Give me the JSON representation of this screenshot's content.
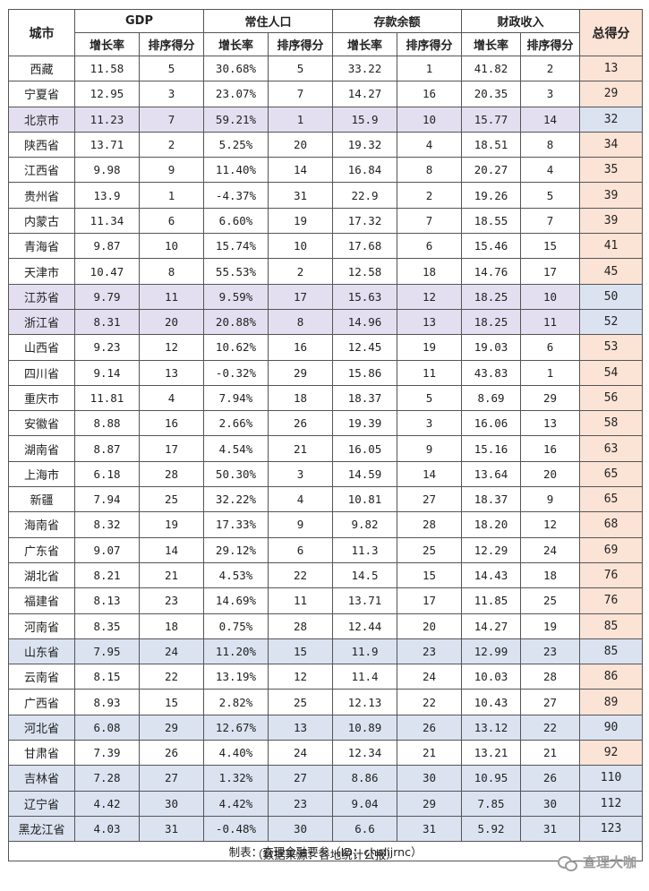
{
  "headers": {
    "city": "城市",
    "groups": [
      "GDP",
      "常住人口",
      "存款余额",
      "财政收入"
    ],
    "sub_rate": "增长率",
    "sub_rank": "排序得分",
    "total": "总得分"
  },
  "rows": [
    {
      "city": "西藏",
      "gdp": "11.58",
      "gdp_s": "5",
      "pop": "30.68%",
      "pop_s": "5",
      "dep": "33.22",
      "dep_s": "1",
      "fis": "41.82",
      "fis_s": "2",
      "total": "13"
    },
    {
      "city": "宁夏省",
      "gdp": "12.95",
      "gdp_s": "3",
      "pop": "23.07%",
      "pop_s": "7",
      "dep": "14.27",
      "dep_s": "16",
      "fis": "20.35",
      "fis_s": "3",
      "total": "29"
    },
    {
      "city": "北京市",
      "gdp": "11.23",
      "gdp_s": "7",
      "pop": "59.21%",
      "pop_s": "1",
      "dep": "15.9",
      "dep_s": "10",
      "fis": "15.77",
      "fis_s": "14",
      "total": "32",
      "hl": "purple"
    },
    {
      "city": "陕西省",
      "gdp": "13.71",
      "gdp_s": "2",
      "pop": "5.25%",
      "pop_s": "20",
      "dep": "19.32",
      "dep_s": "4",
      "fis": "18.51",
      "fis_s": "8",
      "total": "34"
    },
    {
      "city": "江西省",
      "gdp": "9.98",
      "gdp_s": "9",
      "pop": "11.40%",
      "pop_s": "14",
      "dep": "16.84",
      "dep_s": "8",
      "fis": "20.27",
      "fis_s": "4",
      "total": "35"
    },
    {
      "city": "贵州省",
      "gdp": "13.9",
      "gdp_s": "1",
      "pop": "-4.37%",
      "pop_s": "31",
      "dep": "22.9",
      "dep_s": "2",
      "fis": "19.26",
      "fis_s": "5",
      "total": "39"
    },
    {
      "city": "内蒙古",
      "gdp": "11.34",
      "gdp_s": "6",
      "pop": "6.60%",
      "pop_s": "19",
      "dep": "17.32",
      "dep_s": "7",
      "fis": "18.55",
      "fis_s": "7",
      "total": "39"
    },
    {
      "city": "青海省",
      "gdp": "9.87",
      "gdp_s": "10",
      "pop": "15.74%",
      "pop_s": "10",
      "dep": "17.68",
      "dep_s": "6",
      "fis": "15.46",
      "fis_s": "15",
      "total": "41"
    },
    {
      "city": "天津市",
      "gdp": "10.47",
      "gdp_s": "8",
      "pop": "55.53%",
      "pop_s": "2",
      "dep": "12.58",
      "dep_s": "18",
      "fis": "14.76",
      "fis_s": "17",
      "total": "45"
    },
    {
      "city": "江苏省",
      "gdp": "9.79",
      "gdp_s": "11",
      "pop": "9.59%",
      "pop_s": "17",
      "dep": "15.63",
      "dep_s": "12",
      "fis": "18.25",
      "fis_s": "10",
      "total": "50",
      "hl": "purple"
    },
    {
      "city": "浙江省",
      "gdp": "8.31",
      "gdp_s": "20",
      "pop": "20.88%",
      "pop_s": "8",
      "dep": "14.96",
      "dep_s": "13",
      "fis": "18.25",
      "fis_s": "11",
      "total": "52",
      "hl": "purple"
    },
    {
      "city": "山西省",
      "gdp": "9.23",
      "gdp_s": "12",
      "pop": "10.62%",
      "pop_s": "16",
      "dep": "12.45",
      "dep_s": "19",
      "fis": "19.03",
      "fis_s": "6",
      "total": "53"
    },
    {
      "city": "四川省",
      "gdp": "9.14",
      "gdp_s": "13",
      "pop": "-0.32%",
      "pop_s": "29",
      "dep": "15.86",
      "dep_s": "11",
      "fis": "43.83",
      "fis_s": "1",
      "total": "54"
    },
    {
      "city": "重庆市",
      "gdp": "11.81",
      "gdp_s": "4",
      "pop": "7.94%",
      "pop_s": "18",
      "dep": "18.37",
      "dep_s": "5",
      "fis": "8.69",
      "fis_s": "29",
      "total": "56"
    },
    {
      "city": "安徽省",
      "gdp": "8.88",
      "gdp_s": "16",
      "pop": "2.66%",
      "pop_s": "26",
      "dep": "19.39",
      "dep_s": "3",
      "fis": "16.06",
      "fis_s": "13",
      "total": "58"
    },
    {
      "city": "湖南省",
      "gdp": "8.87",
      "gdp_s": "17",
      "pop": "4.54%",
      "pop_s": "21",
      "dep": "16.05",
      "dep_s": "9",
      "fis": "15.16",
      "fis_s": "16",
      "total": "63"
    },
    {
      "city": "上海市",
      "gdp": "6.18",
      "gdp_s": "28",
      "pop": "50.30%",
      "pop_s": "3",
      "dep": "14.59",
      "dep_s": "14",
      "fis": "13.64",
      "fis_s": "20",
      "total": "65"
    },
    {
      "city": "新疆",
      "gdp": "7.94",
      "gdp_s": "25",
      "pop": "32.22%",
      "pop_s": "4",
      "dep": "10.81",
      "dep_s": "27",
      "fis": "18.37",
      "fis_s": "9",
      "total": "65"
    },
    {
      "city": "海南省",
      "gdp": "8.32",
      "gdp_s": "19",
      "pop": "17.33%",
      "pop_s": "9",
      "dep": "9.82",
      "dep_s": "28",
      "fis": "18.20",
      "fis_s": "12",
      "total": "68"
    },
    {
      "city": "广东省",
      "gdp": "9.07",
      "gdp_s": "14",
      "pop": "29.12%",
      "pop_s": "6",
      "dep": "11.3",
      "dep_s": "25",
      "fis": "12.29",
      "fis_s": "24",
      "total": "69"
    },
    {
      "city": "湖北省",
      "gdp": "8.21",
      "gdp_s": "21",
      "pop": "4.53%",
      "pop_s": "22",
      "dep": "14.5",
      "dep_s": "15",
      "fis": "14.43",
      "fis_s": "18",
      "total": "76"
    },
    {
      "city": "福建省",
      "gdp": "8.13",
      "gdp_s": "23",
      "pop": "14.69%",
      "pop_s": "11",
      "dep": "13.71",
      "dep_s": "17",
      "fis": "11.85",
      "fis_s": "25",
      "total": "76"
    },
    {
      "city": "河南省",
      "gdp": "8.35",
      "gdp_s": "18",
      "pop": "0.75%",
      "pop_s": "28",
      "dep": "12.44",
      "dep_s": "20",
      "fis": "14.27",
      "fis_s": "19",
      "total": "85"
    },
    {
      "city": "山东省",
      "gdp": "7.95",
      "gdp_s": "24",
      "pop": "11.20%",
      "pop_s": "15",
      "dep": "11.9",
      "dep_s": "23",
      "fis": "12.99",
      "fis_s": "23",
      "total": "85",
      "hl": "blue"
    },
    {
      "city": "云南省",
      "gdp": "8.15",
      "gdp_s": "22",
      "pop": "13.19%",
      "pop_s": "12",
      "dep": "11.4",
      "dep_s": "24",
      "fis": "10.03",
      "fis_s": "28",
      "total": "86"
    },
    {
      "city": "广西省",
      "gdp": "8.93",
      "gdp_s": "15",
      "pop": "2.82%",
      "pop_s": "25",
      "dep": "12.13",
      "dep_s": "22",
      "fis": "10.43",
      "fis_s": "27",
      "total": "89"
    },
    {
      "city": "河北省",
      "gdp": "6.08",
      "gdp_s": "29",
      "pop": "12.67%",
      "pop_s": "13",
      "dep": "10.89",
      "dep_s": "26",
      "fis": "13.12",
      "fis_s": "22",
      "total": "90",
      "hl": "blue"
    },
    {
      "city": "甘肃省",
      "gdp": "7.39",
      "gdp_s": "26",
      "pop": "4.40%",
      "pop_s": "24",
      "dep": "12.34",
      "dep_s": "21",
      "fis": "13.21",
      "fis_s": "21",
      "total": "92"
    },
    {
      "city": "吉林省",
      "gdp": "7.28",
      "gdp_s": "27",
      "pop": "1.32%",
      "pop_s": "27",
      "dep": "8.86",
      "dep_s": "30",
      "fis": "10.95",
      "fis_s": "26",
      "total": "110",
      "hl": "blue"
    },
    {
      "city": "辽宁省",
      "gdp": "4.42",
      "gdp_s": "30",
      "pop": "4.42%",
      "pop_s": "23",
      "dep": "9.04",
      "dep_s": "29",
      "fis": "7.85",
      "fis_s": "30",
      "total": "112",
      "hl": "blue"
    },
    {
      "city": "黑龙江省",
      "gdp": "4.03",
      "gdp_s": "31",
      "pop": "-0.48%",
      "pop_s": "30",
      "dep": "6.6",
      "dep_s": "31",
      "fis": "5.92",
      "fis_s": "31",
      "total": "123",
      "hl": "blue"
    }
  ],
  "footer": "制表：查理金融要参（ID：chalijrnc）",
  "source": "（数据来源：各地统计公报）",
  "watermark": "查理大咖",
  "colors": {
    "total_col": "#fbe3d6",
    "highlight_purple": "#e4dff0",
    "highlight_blue": "#dbe3f1"
  },
  "icons": {
    "watermark": "wechat-icon"
  }
}
